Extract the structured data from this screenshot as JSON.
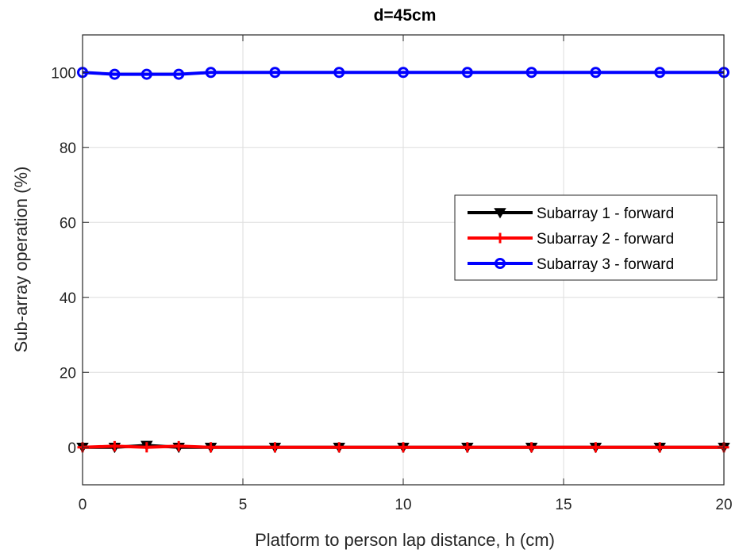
{
  "chart_data": {
    "type": "line",
    "title": "d=45cm",
    "xlabel": "Platform to person lap distance, h (cm)",
    "ylabel": "Sub-array operation (%)",
    "xlim": [
      0,
      20
    ],
    "ylim": [
      -10,
      110
    ],
    "xticks": [
      0,
      5,
      10,
      15,
      20
    ],
    "yticks": [
      0,
      20,
      40,
      60,
      80,
      100
    ],
    "grid": true,
    "legend_position": "right-middle",
    "x": [
      0,
      1,
      2,
      3,
      4,
      6,
      8,
      10,
      12,
      14,
      16,
      18,
      20
    ],
    "series": [
      {
        "name": "Subarray 1 - forward",
        "color": "#000000",
        "marker": "down-triangle",
        "values": [
          0,
          0,
          0.5,
          0,
          0,
          0,
          0,
          0,
          0,
          0,
          0,
          0,
          0
        ]
      },
      {
        "name": "Subarray 2 - forward",
        "color": "#ff0000",
        "marker": "plus",
        "values": [
          0,
          0.3,
          0,
          0.3,
          0,
          0,
          0,
          0,
          0,
          0,
          0,
          0,
          0
        ]
      },
      {
        "name": "Subarray 3 - forward",
        "color": "#0000ff",
        "marker": "circle",
        "values": [
          100,
          99.5,
          99.5,
          99.5,
          100,
          100,
          100,
          100,
          100,
          100,
          100,
          100,
          100
        ]
      }
    ]
  }
}
